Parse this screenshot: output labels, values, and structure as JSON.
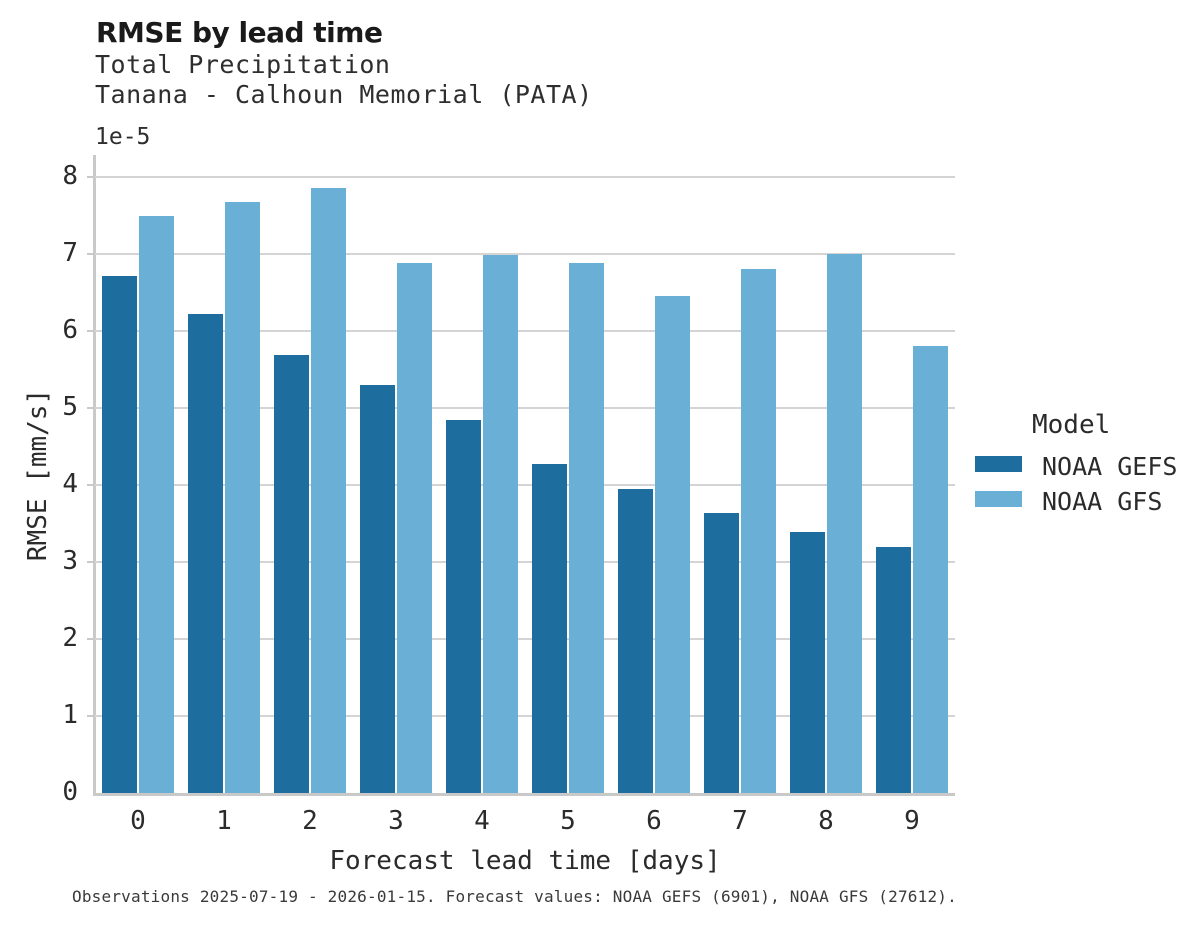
{
  "header": {
    "title": "RMSE by lead time",
    "subtitle1": "Total Precipitation",
    "subtitle2": "Tanana - Calhoun Memorial (PATA)"
  },
  "chart_data": {
    "type": "bar",
    "title": "RMSE by lead time",
    "subtitle": [
      "Total Precipitation",
      "Tanana - Calhoun Memorial (PATA)"
    ],
    "xlabel": "Forecast lead time [days]",
    "ylabel": "RMSE [mm/s]",
    "y_offset_label": "1e-5",
    "y_scale_factor": "1e-5",
    "categories": [
      "0",
      "1",
      "2",
      "3",
      "4",
      "5",
      "6",
      "7",
      "8",
      "9"
    ],
    "series": [
      {
        "name": "NOAA GEFS",
        "color": "#1d6e9e",
        "values": [
          6.71,
          6.22,
          5.69,
          5.3,
          4.84,
          4.27,
          3.95,
          3.64,
          3.39,
          3.19
        ]
      },
      {
        "name": "NOAA GFS",
        "color": "#69afd6",
        "values": [
          7.49,
          7.67,
          7.86,
          6.88,
          6.99,
          6.88,
          6.45,
          6.8,
          7.0,
          5.81
        ]
      }
    ],
    "ylim": [
      0,
      8
    ],
    "yticks": [
      0,
      1,
      2,
      3,
      4,
      5,
      6,
      7,
      8
    ],
    "grid": true,
    "legend_title": "Model",
    "legend_position": "right",
    "footnote": "Observations 2025-07-19 - 2026-01-15. Forecast values: NOAA GEFS (6901), NOAA GFS (27612)."
  },
  "colors": {
    "noaa_gefs": "#1d6e9e",
    "noaa_gfs": "#69afd6",
    "gridline": "#d4d4d4",
    "spine": "#c9c9c9"
  }
}
